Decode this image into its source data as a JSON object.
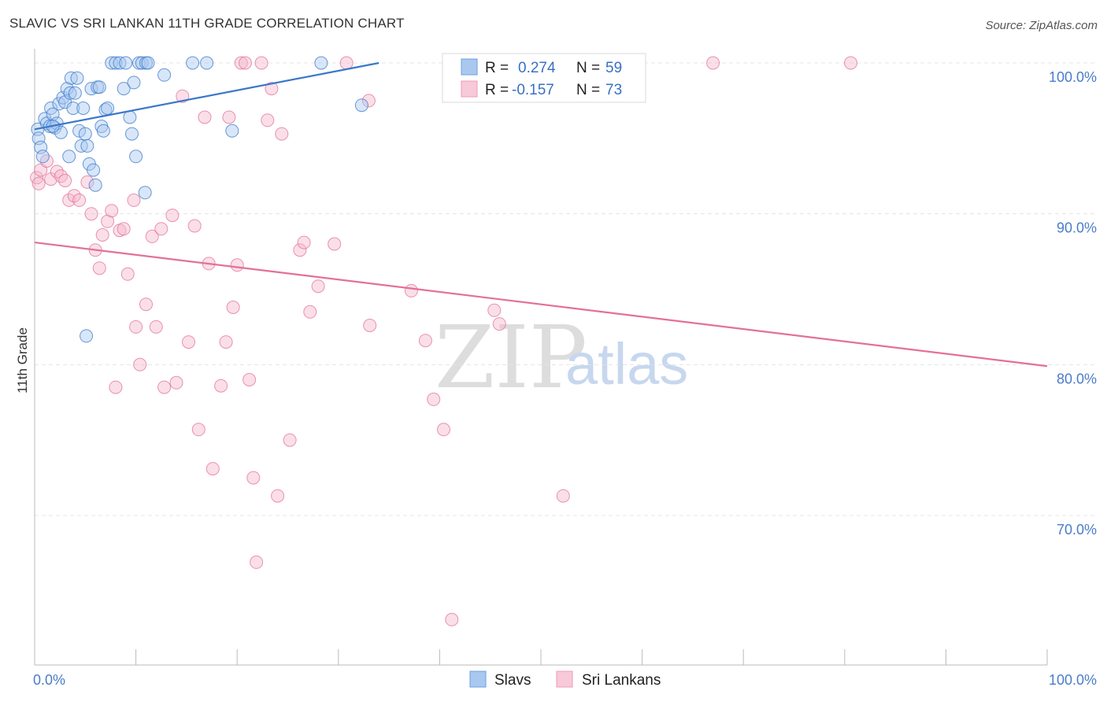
{
  "header": {
    "title": "SLAVIC VS SRI LANKAN 11TH GRADE CORRELATION CHART",
    "source": "Source: ZipAtlas.com"
  },
  "watermark": {
    "zip": "ZIP",
    "atlas": "atlas"
  },
  "colors": {
    "blue": "#3a78c9",
    "blue_fill": "#a9c8ef",
    "pink": "#e3709a",
    "pink_fill": "#f4b9cd",
    "tick_label": "#4a7cc9",
    "grid": "#e4e4e4"
  },
  "legend": {
    "rows": [
      {
        "r_label": "R =",
        "r_value": "0.274",
        "n_label": "N =",
        "n_value": "59"
      },
      {
        "r_label": "R =",
        "r_value": "-0.157",
        "n_label": "N =",
        "n_value": "73"
      }
    ]
  },
  "bottom_legend": {
    "items": [
      "Slavs",
      "Sri Lankans"
    ]
  },
  "chart_data": {
    "type": "scatter",
    "title": "SLAVIC VS SRI LANKAN 11TH GRADE CORRELATION CHART",
    "xlabel": "",
    "ylabel": "11th Grade",
    "xlim": [
      0,
      100
    ],
    "ylim": [
      60,
      101.5
    ],
    "x_tick_labels": [
      "0.0%",
      "100.0%"
    ],
    "y_ticks": [
      70,
      80,
      90,
      100
    ],
    "y_tick_labels": [
      "70.0%",
      "80.0%",
      "90.0%",
      "100.0%"
    ],
    "grid": true,
    "series": [
      {
        "name": "Slavs",
        "r": 0.274,
        "n": 59,
        "trend": {
          "x": [
            0,
            34
          ],
          "y": [
            95.6,
            100.0
          ]
        },
        "points": [
          [
            0.3,
            95.6
          ],
          [
            0.4,
            95.0
          ],
          [
            0.6,
            94.4
          ],
          [
            0.8,
            93.8
          ],
          [
            1.0,
            96.3
          ],
          [
            1.2,
            96.0
          ],
          [
            1.5,
            95.8
          ],
          [
            1.6,
            97.0
          ],
          [
            1.8,
            96.6
          ],
          [
            2.0,
            95.7
          ],
          [
            2.2,
            96.0
          ],
          [
            2.4,
            97.3
          ],
          [
            2.6,
            95.4
          ],
          [
            2.8,
            97.7
          ],
          [
            3.0,
            97.4
          ],
          [
            3.2,
            98.3
          ],
          [
            3.4,
            93.8
          ],
          [
            3.5,
            98.0
          ],
          [
            3.6,
            99.0
          ],
          [
            3.8,
            97.0
          ],
          [
            4.0,
            98.0
          ],
          [
            4.2,
            99.0
          ],
          [
            4.4,
            95.5
          ],
          [
            4.6,
            94.5
          ],
          [
            4.8,
            97.0
          ],
          [
            5.0,
            95.3
          ],
          [
            5.2,
            94.5
          ],
          [
            5.4,
            93.3
          ],
          [
            5.6,
            98.3
          ],
          [
            5.8,
            92.9
          ],
          [
            6.0,
            91.9
          ],
          [
            6.2,
            98.4
          ],
          [
            6.4,
            98.4
          ],
          [
            6.6,
            95.8
          ],
          [
            6.8,
            95.5
          ],
          [
            7.0,
            96.9
          ],
          [
            7.2,
            97.0
          ],
          [
            7.6,
            100.0
          ],
          [
            8.0,
            100.0
          ],
          [
            8.4,
            100.0
          ],
          [
            8.8,
            98.3
          ],
          [
            9.0,
            100.0
          ],
          [
            9.4,
            96.4
          ],
          [
            9.6,
            95.3
          ],
          [
            9.8,
            98.7
          ],
          [
            10.0,
            93.8
          ],
          [
            10.3,
            100.0
          ],
          [
            10.6,
            100.0
          ],
          [
            10.9,
            91.4
          ],
          [
            11.0,
            100.0
          ],
          [
            11.2,
            100.0
          ],
          [
            12.8,
            99.2
          ],
          [
            15.6,
            100.0
          ],
          [
            17.0,
            100.0
          ],
          [
            19.5,
            95.5
          ],
          [
            28.3,
            100.0
          ],
          [
            32.3,
            97.2
          ],
          [
            5.1,
            81.9
          ],
          [
            1.8,
            95.8
          ]
        ]
      },
      {
        "name": "Sri Lankans",
        "r": -0.157,
        "n": 73,
        "trend": {
          "x": [
            0,
            100
          ],
          "y": [
            88.1,
            79.9
          ]
        },
        "points": [
          [
            0.2,
            92.4
          ],
          [
            0.6,
            92.9
          ],
          [
            1.2,
            93.5
          ],
          [
            1.6,
            92.3
          ],
          [
            2.2,
            92.8
          ],
          [
            2.6,
            92.5
          ],
          [
            3.0,
            92.2
          ],
          [
            3.4,
            90.9
          ],
          [
            3.9,
            91.2
          ],
          [
            4.4,
            90.9
          ],
          [
            5.2,
            92.1
          ],
          [
            5.6,
            90.0
          ],
          [
            6.0,
            87.6
          ],
          [
            6.4,
            86.4
          ],
          [
            6.7,
            88.6
          ],
          [
            7.2,
            89.5
          ],
          [
            7.6,
            90.2
          ],
          [
            8.0,
            78.5
          ],
          [
            8.4,
            88.9
          ],
          [
            8.8,
            89.0
          ],
          [
            9.2,
            86.0
          ],
          [
            9.8,
            90.9
          ],
          [
            10.0,
            82.5
          ],
          [
            10.4,
            80.0
          ],
          [
            11.0,
            84.0
          ],
          [
            11.6,
            88.5
          ],
          [
            12.0,
            82.5
          ],
          [
            12.5,
            89.0
          ],
          [
            12.8,
            78.5
          ],
          [
            13.6,
            89.9
          ],
          [
            14.0,
            78.8
          ],
          [
            14.6,
            97.8
          ],
          [
            15.2,
            81.5
          ],
          [
            15.8,
            89.2
          ],
          [
            16.2,
            75.7
          ],
          [
            16.8,
            96.4
          ],
          [
            17.2,
            86.7
          ],
          [
            17.6,
            73.1
          ],
          [
            18.4,
            78.6
          ],
          [
            18.9,
            81.5
          ],
          [
            19.2,
            96.4
          ],
          [
            19.6,
            83.8
          ],
          [
            20.0,
            86.6
          ],
          [
            20.4,
            100.0
          ],
          [
            20.8,
            100.0
          ],
          [
            21.2,
            79.0
          ],
          [
            21.6,
            72.5
          ],
          [
            21.9,
            66.9
          ],
          [
            22.4,
            100.0
          ],
          [
            23.0,
            96.2
          ],
          [
            23.4,
            98.3
          ],
          [
            24.0,
            71.3
          ],
          [
            24.4,
            95.3
          ],
          [
            25.2,
            75.0
          ],
          [
            26.2,
            87.6
          ],
          [
            26.6,
            88.1
          ],
          [
            27.2,
            83.5
          ],
          [
            28.0,
            85.2
          ],
          [
            29.6,
            88.0
          ],
          [
            30.8,
            100.0
          ],
          [
            33.0,
            97.5
          ],
          [
            33.1,
            82.6
          ],
          [
            37.2,
            84.9
          ],
          [
            38.6,
            81.6
          ],
          [
            39.4,
            77.7
          ],
          [
            40.4,
            75.7
          ],
          [
            41.2,
            63.1
          ],
          [
            45.4,
            83.6
          ],
          [
            45.9,
            82.7
          ],
          [
            52.2,
            71.3
          ],
          [
            67.0,
            100.0
          ],
          [
            80.6,
            100.0
          ],
          [
            0.4,
            92.0
          ]
        ]
      }
    ]
  }
}
